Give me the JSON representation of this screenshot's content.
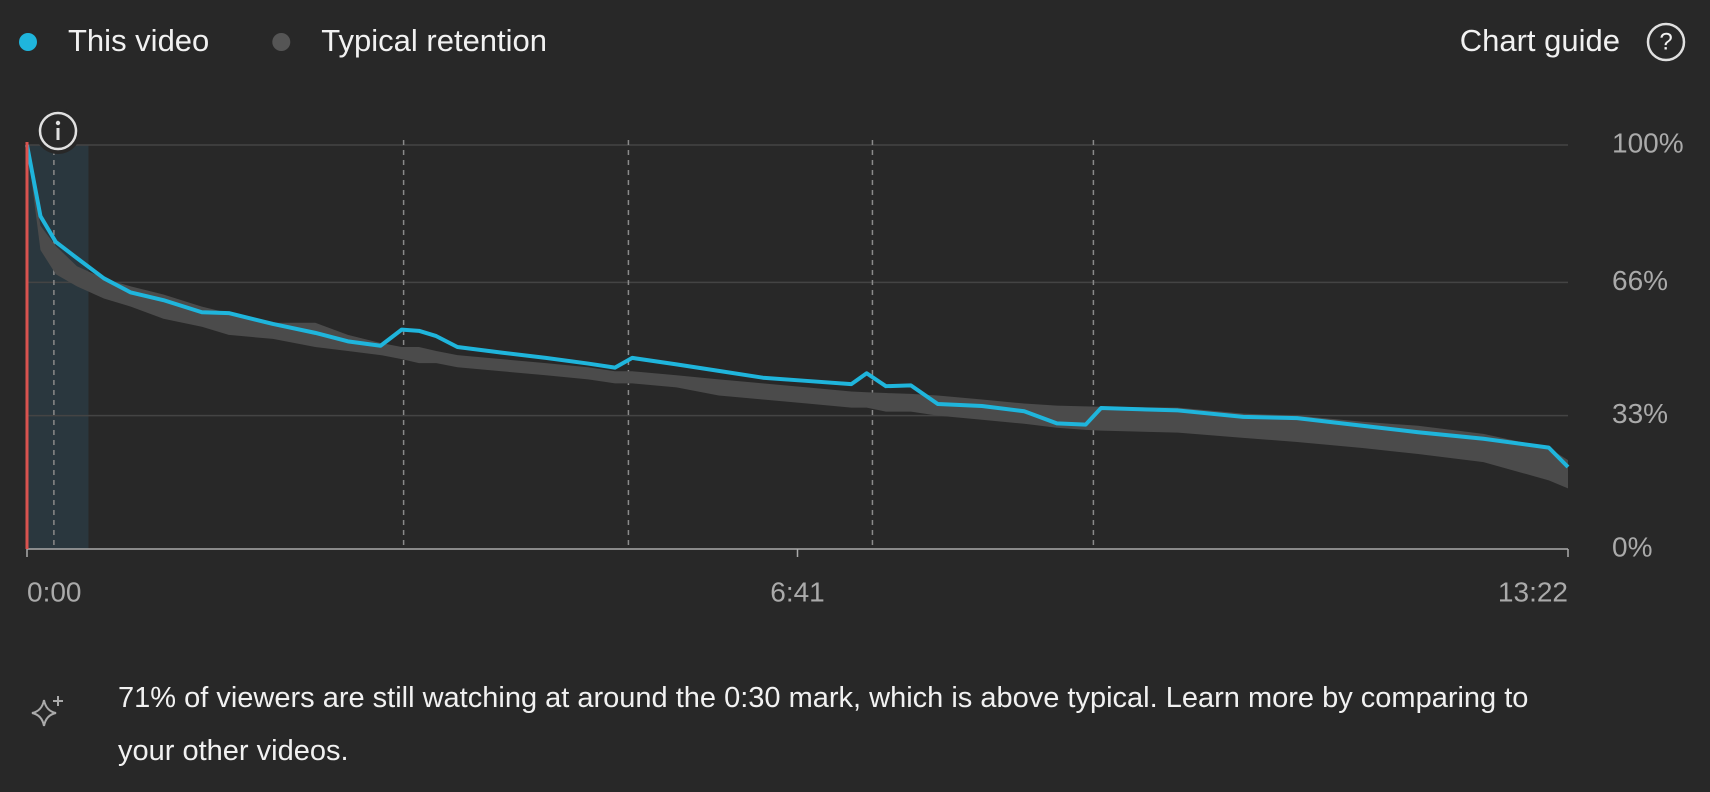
{
  "header": {
    "chart_guide": "Chart guide"
  },
  "insight": {
    "text": "71% of viewers are still watching at around the 0:30 mark, which is above typical. Learn more by comparing to your other videos."
  },
  "chart_data": {
    "type": "line",
    "x": [
      0,
      7,
      15,
      26,
      40,
      54,
      71,
      91,
      105,
      128,
      150,
      167,
      184,
      195,
      204,
      213,
      224,
      247,
      270,
      292,
      306,
      315,
      338,
      360,
      383,
      406,
      429,
      437,
      447,
      460,
      474,
      497,
      519,
      536,
      551,
      559,
      599,
      633,
      661,
      695,
      724,
      758,
      792,
      802
    ],
    "series": [
      {
        "name": "This video",
        "color": "#1fb5dc",
        "values": [
          100,
          82.4,
          76,
          72,
          67,
          63.5,
          61.6,
          58.6,
          58.4,
          55.7,
          53.5,
          51.4,
          50.3,
          54.3,
          54,
          52.7,
          50,
          48.6,
          47.3,
          45.9,
          44.9,
          47.3,
          45.7,
          44.1,
          42.4,
          41.6,
          40.8,
          43.5,
          40.3,
          40.5,
          35.9,
          35.4,
          34.1,
          31.1,
          30.8,
          34.9,
          34.3,
          32.7,
          32.4,
          30.5,
          28.9,
          27.3,
          25.1,
          20.3
        ]
      },
      {
        "name": "Typical retention",
        "color": "#4b4b4b",
        "low": [
          100,
          74,
          68,
          65,
          62,
          60,
          57,
          55,
          53,
          52,
          50,
          49,
          48,
          47,
          46,
          46,
          45,
          44,
          43,
          42,
          41,
          41,
          40,
          38,
          37,
          36,
          35,
          35,
          34,
          34,
          33,
          32,
          31,
          30,
          29.5,
          29.3,
          28.8,
          27.5,
          26.5,
          25,
          23.5,
          21.5,
          17,
          15
        ],
        "high": [
          100,
          80,
          75,
          70,
          67,
          65,
          63,
          60,
          58.4,
          56,
          56,
          53,
          51,
          50,
          50,
          49,
          48,
          47,
          46,
          45,
          44,
          44,
          43,
          42,
          41,
          40,
          39,
          38.8,
          38.6,
          38.4,
          38,
          37,
          36,
          35.5,
          35.3,
          35.2,
          35,
          33.5,
          33,
          31.5,
          30.5,
          28.5,
          25,
          22
        ]
      }
    ],
    "markers": [
      14,
      196,
      313,
      440,
      555
    ],
    "highlight": [
      0,
      32
    ],
    "xlim": [
      0,
      802
    ],
    "xticks": [
      {
        "value": 0,
        "label": "0:00"
      },
      {
        "value": 401,
        "label": "6:41"
      },
      {
        "value": 802,
        "label": "13:22"
      }
    ],
    "ylim": [
      0,
      100
    ],
    "yticks": [
      {
        "value": 0,
        "label": "0%"
      },
      {
        "value": 33,
        "label": "33%"
      },
      {
        "value": 66,
        "label": "66%"
      },
      {
        "value": 100,
        "label": "100%"
      }
    ],
    "grid": true
  }
}
